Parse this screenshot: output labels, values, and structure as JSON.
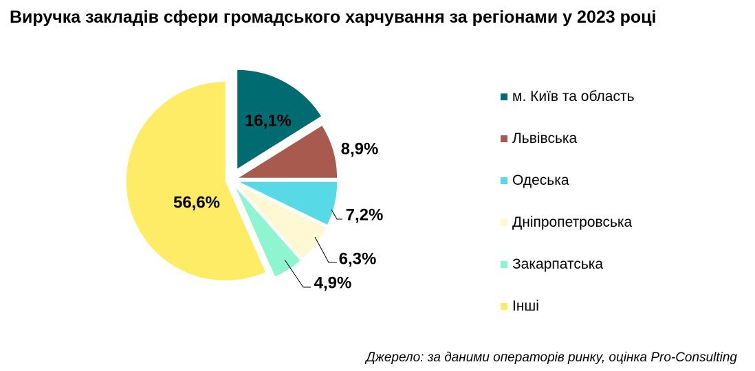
{
  "chart_data": {
    "type": "pie",
    "title": "Виручка закладів сфери громадського харчування за регіонами у 2023 році",
    "categories": [
      "м. Київ та область",
      "Львівська",
      "Одеська",
      "Дніпропетровська",
      "Закарпатська",
      "Інші"
    ],
    "values": [
      16.1,
      8.9,
      7.2,
      6.3,
      4.9,
      56.6
    ],
    "labels": [
      "16,1%",
      "8,9%",
      "7,2%",
      "6,3%",
      "4,9%",
      "56,6%"
    ],
    "colors": [
      "#006B70",
      "#A85A4E",
      "#57D9E6",
      "#FFF8D2",
      "#8DF5CF",
      "#FFEC66"
    ],
    "legend_position": "right",
    "source": "Джерело: за даними операторів ринку, оцінка Pro-Consulting"
  }
}
